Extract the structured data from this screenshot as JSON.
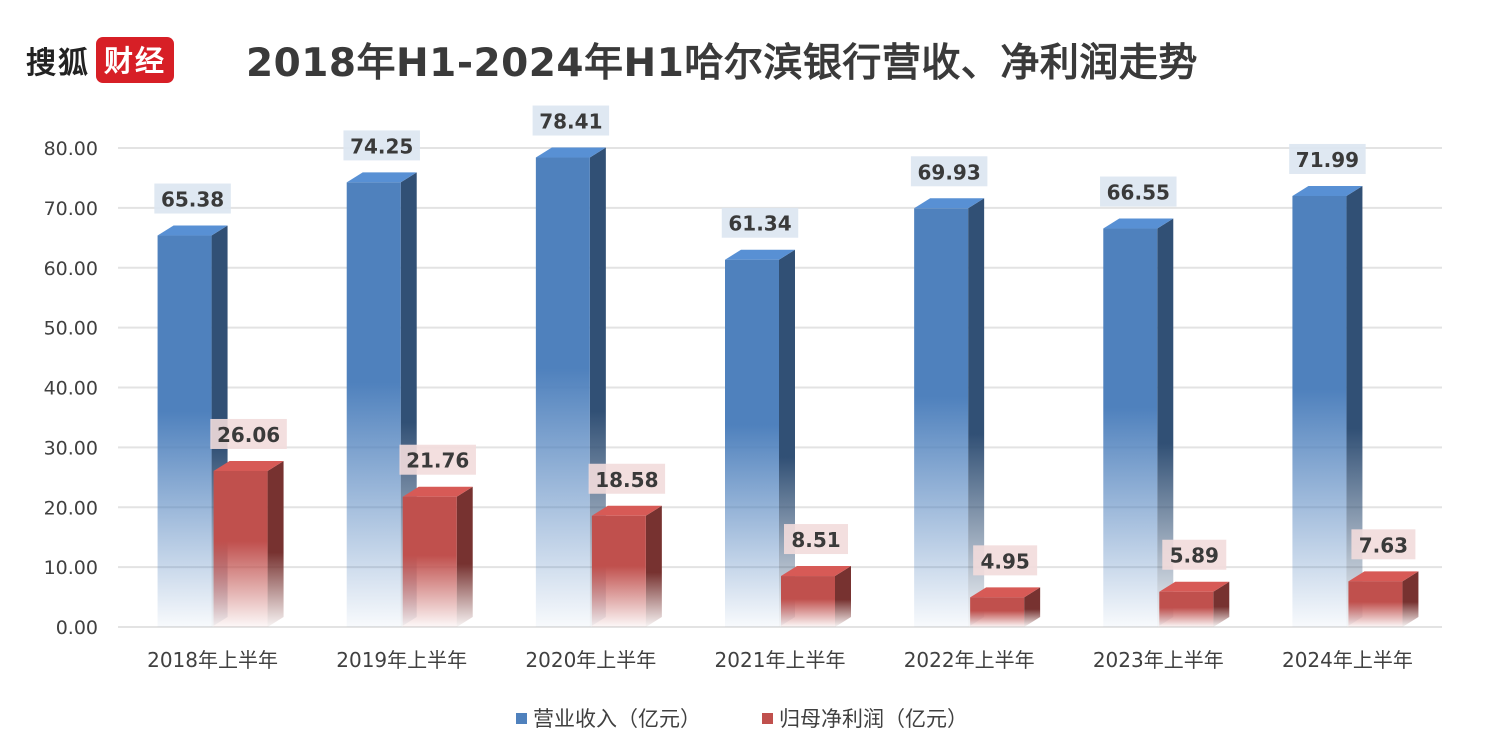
{
  "header": {
    "logo_sohu": "搜狐",
    "logo_caijing": "财经",
    "title": "2018年H1-2024年H1哈尔滨银行营收、净利润走势"
  },
  "chart_data": {
    "type": "bar",
    "title": "2018年H1-2024年H1哈尔滨银行营收、净利润走势",
    "categories": [
      "2018年上半年",
      "2019年上半年",
      "2020年上半年",
      "2021年上半年",
      "2022年上半年",
      "2023年上半年",
      "2024年上半年"
    ],
    "series": [
      {
        "name": "营业收入（亿元）",
        "color": "#4f81bd",
        "values": [
          65.38,
          74.25,
          78.41,
          61.34,
          69.93,
          66.55,
          71.99
        ]
      },
      {
        "name": "归母净利润（亿元）",
        "color": "#c0504d",
        "values": [
          26.06,
          21.76,
          18.58,
          8.51,
          4.95,
          5.89,
          7.63
        ]
      }
    ],
    "ylim": [
      0,
      80
    ],
    "yticks": [
      0,
      10,
      20,
      30,
      40,
      50,
      60,
      70,
      80
    ],
    "ytick_format": 2,
    "grid": true,
    "style": "3d-column",
    "legend_position": "bottom"
  }
}
